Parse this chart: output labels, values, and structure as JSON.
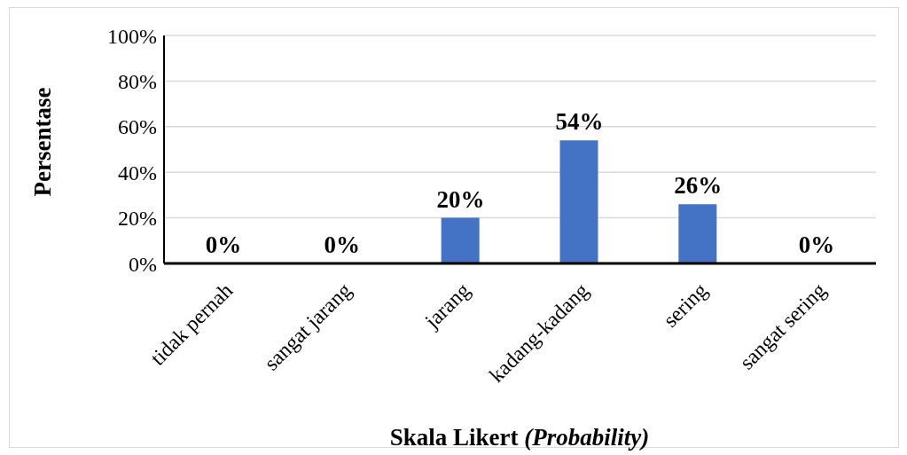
{
  "chart_data": {
    "type": "bar",
    "xlabel": "Skala Likert (Probability)",
    "ylabel": "Persentase",
    "categories": [
      "tidak pernah",
      "sangat jarang",
      "jarang",
      "kadang-kadang",
      "sering",
      "sangat sering"
    ],
    "values": [
      0,
      0,
      20,
      54,
      26,
      0
    ],
    "value_labels": [
      "0%",
      "0%",
      "20%",
      "54%",
      "26%",
      "0%"
    ],
    "color": "#4472c4",
    "ylim": [
      0,
      100
    ],
    "yticks": [
      {
        "value": 0,
        "label": "0%"
      },
      {
        "value": 20,
        "label": "20%"
      },
      {
        "value": 40,
        "label": "40%"
      },
      {
        "value": 60,
        "label": "60%"
      },
      {
        "value": 80,
        "label": "80%"
      },
      {
        "value": 100,
        "label": "100%"
      }
    ],
    "grid": "y",
    "legend": false
  }
}
